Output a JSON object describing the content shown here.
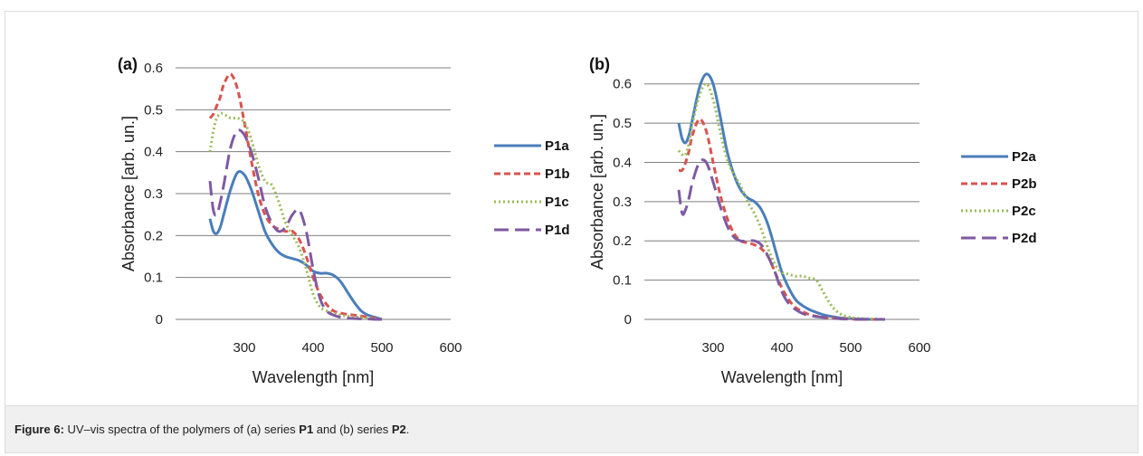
{
  "caption": {
    "label": "Figure 6:",
    "text_1": " UV–vis spectra of the polymers of (a) series ",
    "bold_1": "P1",
    "text_2": " and (b) series ",
    "bold_2": "P2",
    "text_3": "."
  },
  "colors": {
    "blue": "#4a7ebb",
    "red": "#d9534f",
    "green": "#9bbb59",
    "purple": "#7f5aa2",
    "grid": "#7f7f7f"
  },
  "chart_data": [
    {
      "type": "line",
      "panel_label": "(a)",
      "xlabel": "Wavelength [nm]",
      "ylabel": "Absorbance [arb. un.]",
      "xlim": [
        200,
        600
      ],
      "ylim": [
        0,
        0.6
      ],
      "xticks": [
        300,
        400,
        500,
        600
      ],
      "yticks": [
        0,
        0.1,
        0.2,
        0.3,
        0.4,
        0.5,
        0.6
      ],
      "ytick_labels": [
        "0",
        "0.1",
        "0.2",
        "0.3",
        "0.4",
        "0.5",
        "0.6"
      ],
      "grid": "horizontal",
      "legend_position": "right",
      "series": [
        {
          "name": "P1a",
          "color": "blue",
          "dash": "solid",
          "x": [
            250,
            255,
            260,
            265,
            270,
            280,
            290,
            300,
            310,
            320,
            330,
            340,
            350,
            360,
            370,
            380,
            390,
            400,
            410,
            420,
            430,
            440,
            450,
            460,
            470,
            480,
            490,
            500
          ],
          "y": [
            0.24,
            0.21,
            0.205,
            0.22,
            0.25,
            0.31,
            0.35,
            0.345,
            0.31,
            0.26,
            0.21,
            0.18,
            0.16,
            0.15,
            0.145,
            0.14,
            0.13,
            0.115,
            0.11,
            0.11,
            0.105,
            0.09,
            0.065,
            0.04,
            0.02,
            0.01,
            0.005,
            0
          ]
        },
        {
          "name": "P1b",
          "color": "red",
          "dash": "short",
          "x": [
            250,
            255,
            260,
            265,
            270,
            280,
            290,
            300,
            310,
            320,
            330,
            340,
            350,
            360,
            370,
            380,
            390,
            400,
            410,
            420,
            430,
            440,
            450,
            460,
            470,
            480,
            490,
            500
          ],
          "y": [
            0.48,
            0.49,
            0.51,
            0.53,
            0.56,
            0.585,
            0.55,
            0.47,
            0.38,
            0.3,
            0.25,
            0.225,
            0.215,
            0.21,
            0.21,
            0.19,
            0.15,
            0.1,
            0.06,
            0.035,
            0.02,
            0.015,
            0.012,
            0.01,
            0.008,
            0.005,
            0.003,
            0
          ]
        },
        {
          "name": "P1c",
          "color": "green",
          "dash": "dot",
          "x": [
            250,
            255,
            260,
            265,
            270,
            280,
            290,
            300,
            310,
            320,
            330,
            340,
            350,
            360,
            370,
            380,
            390,
            400,
            410,
            420,
            430,
            440,
            450,
            460,
            470,
            480,
            490,
            500
          ],
          "y": [
            0.4,
            0.45,
            0.48,
            0.49,
            0.49,
            0.48,
            0.48,
            0.47,
            0.43,
            0.37,
            0.33,
            0.32,
            0.28,
            0.23,
            0.2,
            0.17,
            0.12,
            0.06,
            0.03,
            0.02,
            0.015,
            0.01,
            0.008,
            0.006,
            0.004,
            0.003,
            0.001,
            0
          ]
        },
        {
          "name": "P1d",
          "color": "purple",
          "dash": "long",
          "x": [
            250,
            255,
            260,
            265,
            270,
            280,
            290,
            300,
            310,
            320,
            330,
            340,
            350,
            360,
            370,
            380,
            390,
            400,
            410,
            420,
            430,
            440,
            450,
            460,
            470,
            480,
            490,
            500
          ],
          "y": [
            0.33,
            0.26,
            0.25,
            0.28,
            0.32,
            0.41,
            0.45,
            0.44,
            0.4,
            0.34,
            0.27,
            0.23,
            0.21,
            0.22,
            0.25,
            0.26,
            0.21,
            0.12,
            0.05,
            0.02,
            0.01,
            0.005,
            0.003,
            0.002,
            0.001,
            0.001,
            0,
            0
          ]
        }
      ]
    },
    {
      "type": "line",
      "panel_label": "(b)",
      "xlabel": "Wavelength [nm]",
      "ylabel": "Absorbance [arb. un.]",
      "xlim": [
        200,
        600
      ],
      "ylim": [
        0,
        0.65
      ],
      "xticks": [
        300,
        400,
        500,
        600
      ],
      "yticks": [
        0,
        0.1,
        0.2,
        0.3,
        0.4,
        0.5,
        0.6
      ],
      "ytick_labels": [
        "0",
        "0.1",
        "0.2",
        "0.3",
        "0.4",
        "0.5",
        "0.6"
      ],
      "grid": "horizontal",
      "legend_position": "right",
      "series": [
        {
          "name": "P2a",
          "color": "blue",
          "dash": "solid",
          "x": [
            250,
            255,
            260,
            265,
            270,
            280,
            290,
            300,
            310,
            320,
            330,
            340,
            350,
            360,
            370,
            380,
            390,
            400,
            410,
            420,
            430,
            440,
            450,
            460,
            470,
            480,
            490,
            500,
            510,
            520,
            530,
            540,
            550
          ],
          "y": [
            0.5,
            0.46,
            0.45,
            0.47,
            0.51,
            0.59,
            0.625,
            0.6,
            0.52,
            0.43,
            0.37,
            0.33,
            0.31,
            0.3,
            0.28,
            0.24,
            0.18,
            0.12,
            0.08,
            0.05,
            0.035,
            0.025,
            0.018,
            0.012,
            0.008,
            0.005,
            0.003,
            0.002,
            0.001,
            0.001,
            0,
            0,
            0
          ]
        },
        {
          "name": "P2b",
          "color": "red",
          "dash": "short",
          "x": [
            250,
            255,
            260,
            265,
            270,
            280,
            290,
            300,
            310,
            320,
            330,
            340,
            350,
            360,
            370,
            380,
            390,
            400,
            410,
            420,
            430,
            440,
            450,
            460,
            470,
            480,
            490,
            500,
            510,
            520,
            530,
            540,
            550
          ],
          "y": [
            0.38,
            0.38,
            0.4,
            0.43,
            0.47,
            0.51,
            0.48,
            0.4,
            0.32,
            0.26,
            0.22,
            0.2,
            0.195,
            0.19,
            0.18,
            0.16,
            0.12,
            0.08,
            0.05,
            0.03,
            0.02,
            0.012,
            0.008,
            0.005,
            0.004,
            0.003,
            0.002,
            0.001,
            0,
            0,
            0,
            0,
            0
          ]
        },
        {
          "name": "P2c",
          "color": "green",
          "dash": "dot",
          "x": [
            250,
            255,
            260,
            265,
            270,
            280,
            290,
            300,
            310,
            320,
            330,
            340,
            350,
            360,
            370,
            380,
            390,
            400,
            410,
            420,
            430,
            440,
            450,
            460,
            470,
            480,
            490,
            500,
            510,
            520,
            530,
            540,
            550
          ],
          "y": [
            0.43,
            0.42,
            0.42,
            0.45,
            0.5,
            0.57,
            0.6,
            0.56,
            0.48,
            0.41,
            0.37,
            0.34,
            0.3,
            0.27,
            0.23,
            0.18,
            0.14,
            0.12,
            0.115,
            0.11,
            0.11,
            0.105,
            0.1,
            0.07,
            0.04,
            0.02,
            0.01,
            0.005,
            0.003,
            0.002,
            0.001,
            0.001,
            0
          ]
        },
        {
          "name": "P2d",
          "color": "purple",
          "dash": "long",
          "x": [
            250,
            255,
            260,
            265,
            270,
            280,
            290,
            300,
            310,
            320,
            330,
            340,
            350,
            360,
            370,
            380,
            390,
            400,
            410,
            420,
            430,
            440,
            450,
            460,
            470,
            480,
            490,
            500,
            510,
            520,
            530,
            540,
            550
          ],
          "y": [
            0.33,
            0.27,
            0.28,
            0.31,
            0.35,
            0.4,
            0.4,
            0.35,
            0.29,
            0.24,
            0.21,
            0.2,
            0.2,
            0.2,
            0.19,
            0.16,
            0.12,
            0.07,
            0.04,
            0.025,
            0.015,
            0.01,
            0.007,
            0.005,
            0.003,
            0.002,
            0.001,
            0.001,
            0,
            0,
            0,
            0,
            0
          ]
        }
      ]
    }
  ]
}
